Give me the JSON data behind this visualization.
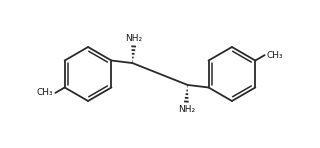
{
  "bg_color": "#ffffff",
  "line_color": "#2a2a2a",
  "line_width": 1.3,
  "text_color": "#1a1a1a",
  "nh2_fontsize": 6.5,
  "ch3_fontsize": 6.5,
  "xlim": [
    -1.2,
    11.2
  ],
  "ylim": [
    2.2,
    7.8
  ],
  "figsize": [
    3.2,
    1.48
  ],
  "dpi": 100,
  "hex_r": 1.05,
  "lrx": 2.2,
  "lry": 5.0,
  "rrx": 7.8,
  "rry": 5.0
}
